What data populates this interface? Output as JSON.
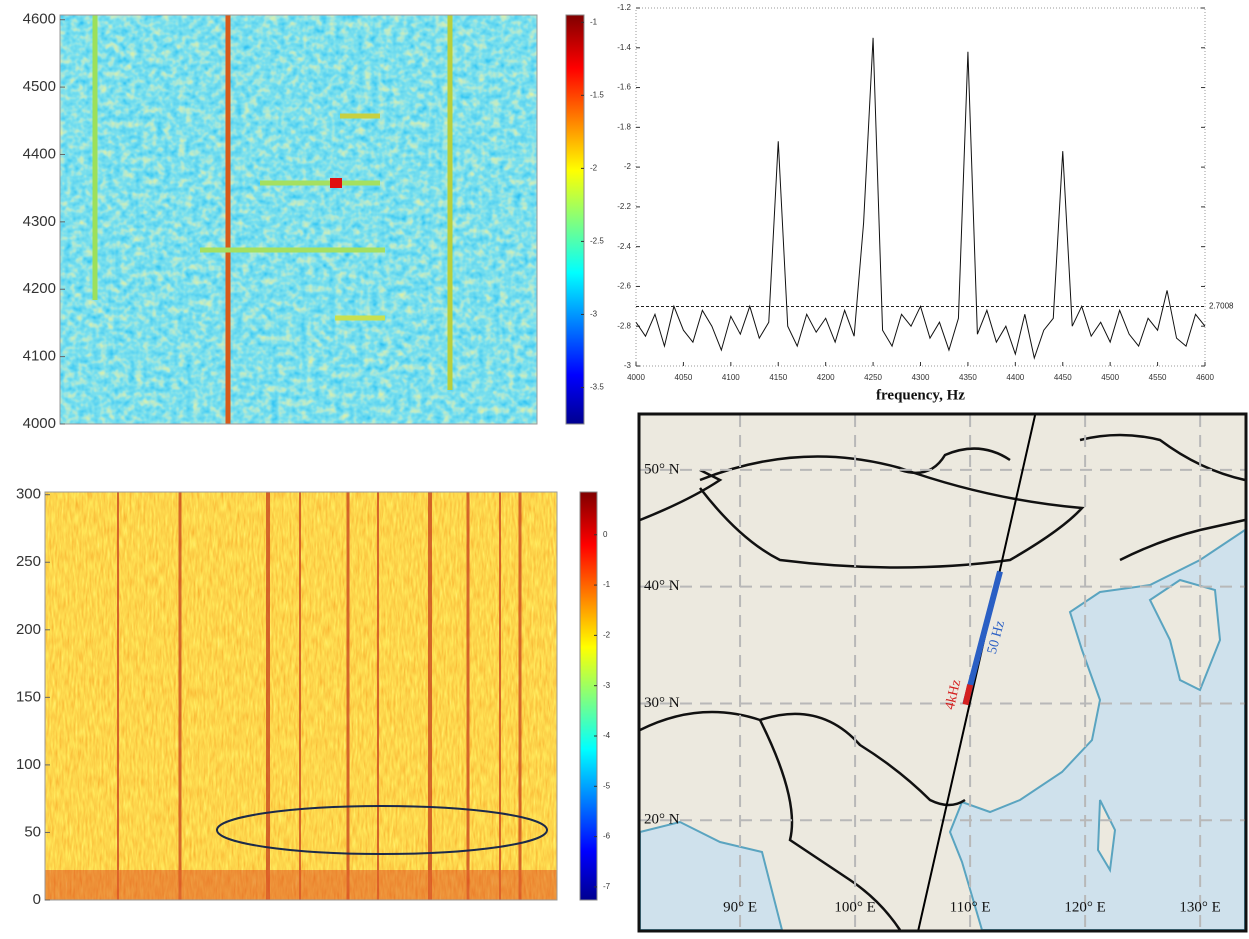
{
  "chart_data": [
    {
      "type": "heatmap",
      "ylim": [
        4000,
        4607
      ],
      "yticks": [
        4000,
        4100,
        4200,
        4300,
        4400,
        4500,
        4600
      ],
      "clim": [
        -3.75,
        -0.95
      ],
      "cticks": [
        -1,
        -1.5,
        -2,
        -2.5,
        -3,
        -3.5
      ]
    },
    {
      "type": "line",
      "xlabel": "frequency, Hz",
      "color": "#111111",
      "x": [
        4000,
        4010,
        4020,
        4030,
        4040,
        4050,
        4060,
        4070,
        4080,
        4090,
        4100,
        4110,
        4120,
        4130,
        4140,
        4150,
        4160,
        4170,
        4180,
        4190,
        4200,
        4210,
        4220,
        4230,
        4240,
        4250,
        4260,
        4270,
        4280,
        4290,
        4300,
        4310,
        4320,
        4330,
        4340,
        4350,
        4360,
        4370,
        4380,
        4390,
        4400,
        4410,
        4420,
        4430,
        4440,
        4450,
        4460,
        4470,
        4480,
        4490,
        4500,
        4510,
        4520,
        4530,
        4540,
        4550,
        4560,
        4570,
        4580,
        4590,
        4600
      ],
      "values": [
        -2.78,
        -2.85,
        -2.74,
        -2.9,
        -2.7,
        -2.82,
        -2.88,
        -2.72,
        -2.8,
        -2.92,
        -2.75,
        -2.84,
        -2.7,
        -2.86,
        -2.78,
        -1.87,
        -2.8,
        -2.9,
        -2.74,
        -2.83,
        -2.76,
        -2.88,
        -2.72,
        -2.85,
        -2.28,
        -1.35,
        -2.82,
        -2.9,
        -2.74,
        -2.8,
        -2.7,
        -2.86,
        -2.78,
        -2.92,
        -2.76,
        -1.42,
        -2.84,
        -2.72,
        -2.88,
        -2.8,
        -2.94,
        -2.74,
        -2.96,
        -2.82,
        -2.76,
        -1.92,
        -2.8,
        -2.7,
        -2.85,
        -2.78,
        -2.88,
        -2.72,
        -2.84,
        -2.9,
        -2.76,
        -2.82,
        -2.62,
        -2.86,
        -2.9,
        -2.74,
        -2.8
      ],
      "xlim": [
        4000,
        4600
      ],
      "xticks": [
        4000,
        4050,
        4100,
        4150,
        4200,
        4250,
        4300,
        4350,
        4400,
        4450,
        4500,
        4550,
        4600
      ],
      "ylim": [
        -3,
        -1.2
      ],
      "yticks": [
        -1.2,
        -1.4,
        -1.6,
        -1.8,
        -2,
        -2.2,
        -2.4,
        -2.6,
        -2.8,
        -3
      ],
      "annotations": [
        {
          "value": -2.7008,
          "label": "2.7008"
        }
      ]
    },
    {
      "type": "heatmap",
      "ylim": [
        0,
        302
      ],
      "yticks": [
        0,
        50,
        100,
        150,
        200,
        250,
        300
      ],
      "clim": [
        -7.26,
        0.85
      ],
      "cticks": [
        0,
        -1,
        -2,
        -3,
        -4,
        -5,
        -6,
        -7
      ]
    },
    {
      "type": "map",
      "xlim": [
        81.3,
        133.9
      ],
      "ylim": [
        10.6,
        54.7
      ],
      "xticks": [
        {
          "value": 90,
          "label": "90° E"
        },
        {
          "value": 100,
          "label": "100° E"
        },
        {
          "value": 110,
          "label": "110° E"
        },
        {
          "value": 120,
          "label": "120° E"
        },
        {
          "value": 130,
          "label": "130° E"
        }
      ],
      "yticks": [
        {
          "value": 20,
          "label": "20° N"
        },
        {
          "value": 30,
          "label": "30° N"
        },
        {
          "value": 40,
          "label": "40° N"
        },
        {
          "value": 50,
          "label": "50° N"
        }
      ],
      "track": {
        "x": [
          115.65,
          105.5
        ],
        "y": [
          54.7,
          10.6
        ],
        "color": "#000000"
      },
      "segments": [
        {
          "label": "50 Hz",
          "color": "#2a5fc4",
          "x": [
            112.6,
            109.6
          ],
          "y": [
            41.3,
            30
          ]
        },
        {
          "label": "4kHz",
          "color": "#d42020",
          "x": [
            110.0,
            109.6
          ],
          "y": [
            31.6,
            29.9
          ]
        }
      ]
    }
  ]
}
